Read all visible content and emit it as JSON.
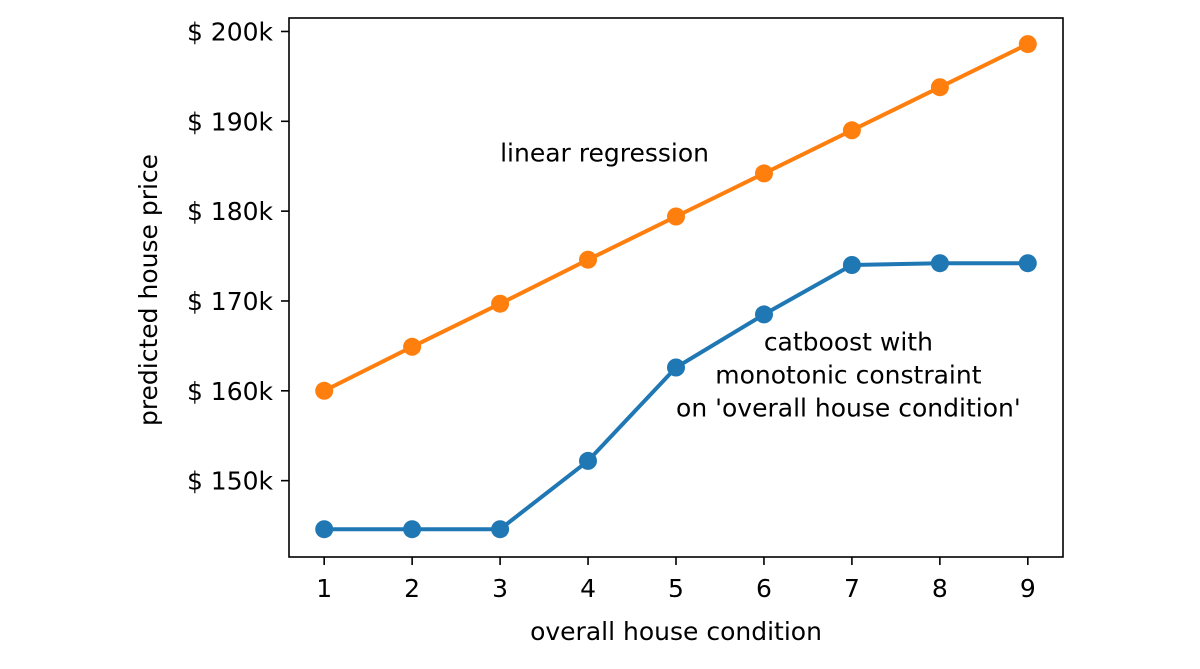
{
  "chart_data": {
    "type": "line",
    "title": "",
    "xlabel": "overall house condition",
    "ylabel": "predicted house price",
    "x": [
      1,
      2,
      3,
      4,
      5,
      6,
      7,
      8,
      9
    ],
    "xlim": [
      0.6,
      9.4
    ],
    "ylim": [
      141500,
      201500
    ],
    "xticks": [
      1,
      2,
      3,
      4,
      5,
      6,
      7,
      8,
      9
    ],
    "xtick_labels": [
      "1",
      "2",
      "3",
      "4",
      "5",
      "6",
      "7",
      "8",
      "9"
    ],
    "yticks": [
      150000,
      160000,
      170000,
      180000,
      190000,
      200000
    ],
    "ytick_labels": [
      "$ 150k",
      "$ 160k",
      "$ 170k",
      "$ 180k",
      "$ 190k",
      "$ 200k"
    ],
    "grid": false,
    "series": [
      {
        "color": "#1f77b4",
        "values": [
          144600,
          144600,
          144600,
          152200,
          162600,
          168500,
          174000,
          174200,
          174200
        ]
      },
      {
        "color": "#ff7f0e",
        "values": [
          160000,
          164900,
          169700,
          174600,
          179400,
          184200,
          189000,
          193800,
          198600
        ]
      }
    ],
    "annotations": [
      {
        "lines": [
          "linear regression"
        ],
        "x": 3.0,
        "y": 185500,
        "anchor": "start"
      },
      {
        "lines": [
          "catboost with",
          "monotonic constraint",
          "on 'overall house condition'"
        ],
        "x": 6.96,
        "y": 164500,
        "anchor": "middle"
      }
    ]
  }
}
